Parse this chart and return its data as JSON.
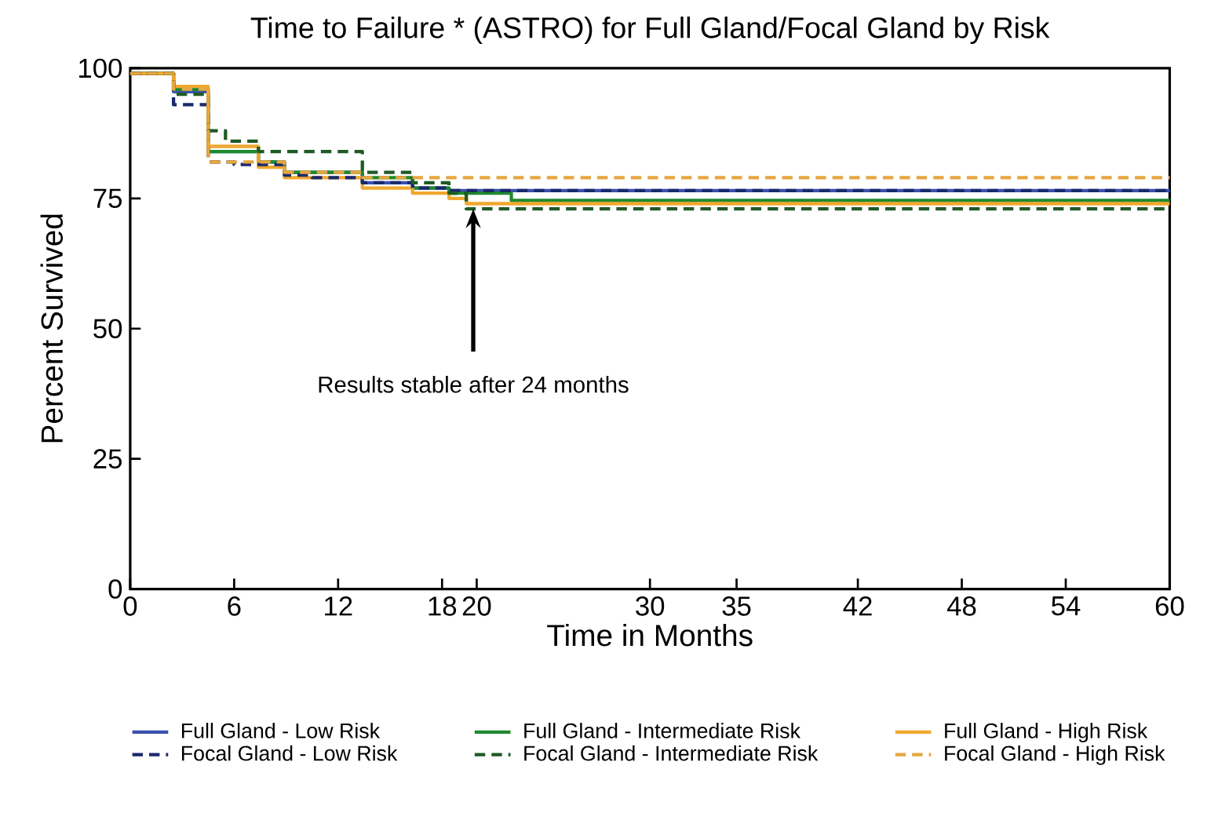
{
  "chart_data": {
    "type": "step",
    "title": "Time to Failure * (ASTRO) for Full Gland/Focal Gland by Risk",
    "xlabel": "Time in Months",
    "ylabel": "Percent Survived",
    "xlim": [
      0,
      60
    ],
    "ylim": [
      0,
      100
    ],
    "xticks": [
      0,
      6,
      12,
      18,
      20,
      30,
      35,
      42,
      48,
      54,
      60
    ],
    "yticks": [
      0,
      25,
      50,
      75,
      100
    ],
    "grid": false,
    "legend": "bottom",
    "marker": "none",
    "annotations": [
      {
        "text": "Results stable after 24 months",
        "x": 19.8,
        "y": 73
      }
    ],
    "series": [
      {
        "name": "Full Gland - Low Risk",
        "color": "#3a50b0",
        "line_style": "solid",
        "x": [
          0,
          2.5,
          4.5,
          7.4,
          8.9,
          13.4,
          16.3,
          18.4,
          60
        ],
        "values": [
          99,
          95.5,
          84,
          82,
          80,
          78,
          77,
          76.5,
          76.5
        ]
      },
      {
        "name": "Full Gland - Intermediate Risk",
        "color": "#1e8a2e",
        "line_style": "solid",
        "x": [
          0,
          2.5,
          4.5,
          7.4,
          8.9,
          13.4,
          16.3,
          18.4,
          22,
          60
        ],
        "values": [
          99,
          96,
          84,
          82,
          80,
          79,
          77,
          76,
          74.6,
          74.6
        ]
      },
      {
        "name": "Full Gland - High Risk",
        "color": "#f0a830",
        "line_style": "solid",
        "x": [
          0,
          2.5,
          4.5,
          7.4,
          8.9,
          13.4,
          16.3,
          18.4,
          19.4,
          60
        ],
        "values": [
          99,
          96.5,
          85,
          81,
          79,
          77,
          76,
          75,
          74,
          74
        ]
      },
      {
        "name": "Focal Gland - Low Risk",
        "color": "#1a2a6c",
        "line_style": "dashed",
        "x": [
          0,
          2.5,
          4.5,
          6,
          8.9,
          10.5,
          13.4,
          16.3,
          18.4,
          60
        ],
        "values": [
          99,
          93,
          82,
          81.5,
          79.5,
          79,
          78,
          77,
          76.5,
          76.5
        ]
      },
      {
        "name": "Focal Gland - Intermediate Risk",
        "color": "#1f5a25",
        "line_style": "dashed",
        "x": [
          0,
          2.5,
          4.5,
          5.5,
          7.4,
          13.4,
          16.3,
          18.4,
          19.4,
          60
        ],
        "values": [
          99,
          95,
          88,
          86,
          84,
          80,
          78,
          76,
          73,
          73
        ]
      },
      {
        "name": "Focal Gland - High Risk",
        "color": "#e6a640",
        "line_style": "dashed",
        "x": [
          0,
          2.5,
          4.5,
          8.9,
          13.4,
          16.3,
          60
        ],
        "values": [
          99,
          96,
          82,
          80,
          79,
          79,
          79
        ]
      }
    ]
  }
}
